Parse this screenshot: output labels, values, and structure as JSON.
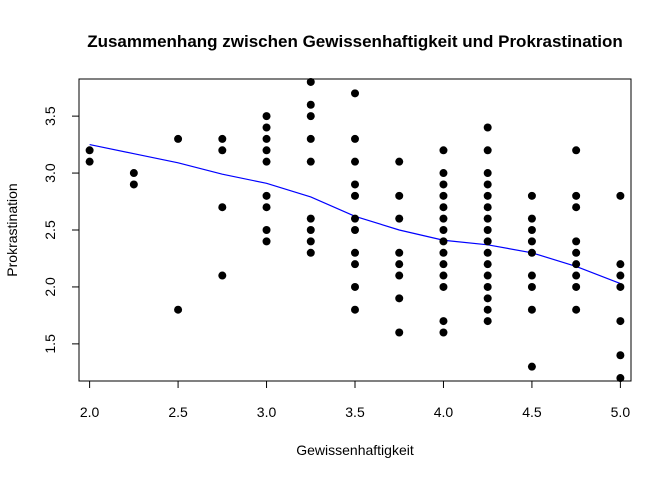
{
  "chart_data": {
    "type": "scatter",
    "title": "Zusammenhang zwischen Gewissenhaftigkeit und Prokrastination",
    "xlabel": "Gewissenhaftigkeit",
    "ylabel": "Prokrastination",
    "xlim": [
      1.94,
      5.06
    ],
    "ylim": [
      1.174,
      3.826
    ],
    "x_ticks": [
      2.0,
      2.5,
      3.0,
      3.5,
      4.0,
      4.5,
      5.0
    ],
    "x_tick_labels": [
      "2.0",
      "2.5",
      "3.0",
      "3.5",
      "4.0",
      "4.5",
      "5.0"
    ],
    "y_ticks": [
      1.5,
      2.0,
      2.5,
      3.0,
      3.5
    ],
    "y_tick_labels": [
      "1.5",
      "2.0",
      "2.5",
      "3.0",
      "3.5"
    ],
    "grid": false,
    "legend": "none",
    "point_color": "#000000",
    "smooth_color": "#0000ff",
    "points": [
      [
        2.0,
        3.2
      ],
      [
        2.0,
        3.1
      ],
      [
        2.25,
        3.0
      ],
      [
        2.25,
        2.9
      ],
      [
        2.5,
        3.3
      ],
      [
        2.5,
        1.8
      ],
      [
        2.75,
        3.3
      ],
      [
        2.75,
        3.2
      ],
      [
        2.75,
        2.7
      ],
      [
        2.75,
        2.1
      ],
      [
        3.0,
        3.5
      ],
      [
        3.0,
        3.4
      ],
      [
        3.0,
        3.3
      ],
      [
        3.0,
        3.2
      ],
      [
        3.0,
        3.1
      ],
      [
        3.0,
        2.8
      ],
      [
        3.0,
        2.7
      ],
      [
        3.0,
        2.5
      ],
      [
        3.0,
        2.4
      ],
      [
        3.25,
        3.8
      ],
      [
        3.25,
        3.6
      ],
      [
        3.25,
        3.5
      ],
      [
        3.25,
        3.3
      ],
      [
        3.25,
        3.1
      ],
      [
        3.25,
        2.6
      ],
      [
        3.25,
        2.5
      ],
      [
        3.25,
        2.4
      ],
      [
        3.25,
        2.3
      ],
      [
        3.5,
        3.7
      ],
      [
        3.5,
        3.3
      ],
      [
        3.5,
        3.1
      ],
      [
        3.5,
        2.9
      ],
      [
        3.5,
        2.8
      ],
      [
        3.5,
        2.6
      ],
      [
        3.5,
        2.5
      ],
      [
        3.5,
        2.3
      ],
      [
        3.5,
        2.2
      ],
      [
        3.5,
        2.0
      ],
      [
        3.5,
        1.8
      ],
      [
        3.75,
        3.1
      ],
      [
        3.75,
        2.8
      ],
      [
        3.75,
        2.6
      ],
      [
        3.75,
        2.3
      ],
      [
        3.75,
        2.2
      ],
      [
        3.75,
        2.1
      ],
      [
        3.75,
        1.9
      ],
      [
        3.75,
        1.6
      ],
      [
        4.0,
        3.2
      ],
      [
        4.0,
        3.0
      ],
      [
        4.0,
        2.9
      ],
      [
        4.0,
        2.8
      ],
      [
        4.0,
        2.7
      ],
      [
        4.0,
        2.6
      ],
      [
        4.0,
        2.5
      ],
      [
        4.0,
        2.4
      ],
      [
        4.0,
        2.3
      ],
      [
        4.0,
        2.2
      ],
      [
        4.0,
        2.1
      ],
      [
        4.0,
        2.0
      ],
      [
        4.0,
        1.7
      ],
      [
        4.0,
        1.6
      ],
      [
        4.25,
        3.4
      ],
      [
        4.25,
        3.2
      ],
      [
        4.25,
        3.0
      ],
      [
        4.25,
        2.9
      ],
      [
        4.25,
        2.8
      ],
      [
        4.25,
        2.7
      ],
      [
        4.25,
        2.6
      ],
      [
        4.25,
        2.5
      ],
      [
        4.25,
        2.4
      ],
      [
        4.25,
        2.3
      ],
      [
        4.25,
        2.2
      ],
      [
        4.25,
        2.1
      ],
      [
        4.25,
        2.0
      ],
      [
        4.25,
        1.9
      ],
      [
        4.25,
        1.8
      ],
      [
        4.25,
        1.7
      ],
      [
        4.5,
        2.8
      ],
      [
        4.5,
        2.6
      ],
      [
        4.5,
        2.5
      ],
      [
        4.5,
        2.4
      ],
      [
        4.5,
        2.3
      ],
      [
        4.5,
        2.1
      ],
      [
        4.5,
        2.0
      ],
      [
        4.5,
        1.8
      ],
      [
        4.5,
        1.3
      ],
      [
        4.75,
        3.2
      ],
      [
        4.75,
        2.8
      ],
      [
        4.75,
        2.7
      ],
      [
        4.75,
        2.4
      ],
      [
        4.75,
        2.3
      ],
      [
        4.75,
        2.2
      ],
      [
        4.75,
        2.1
      ],
      [
        4.75,
        2.0
      ],
      [
        4.75,
        1.8
      ],
      [
        5.0,
        2.8
      ],
      [
        5.0,
        2.2
      ],
      [
        5.0,
        2.1
      ],
      [
        5.0,
        2.0
      ],
      [
        5.0,
        1.7
      ],
      [
        5.0,
        1.4
      ],
      [
        5.0,
        1.2
      ]
    ],
    "smooth_line": [
      [
        2.0,
        3.25
      ],
      [
        2.25,
        3.17
      ],
      [
        2.5,
        3.09
      ],
      [
        2.75,
        2.99
      ],
      [
        3.0,
        2.91
      ],
      [
        3.25,
        2.79
      ],
      [
        3.5,
        2.62
      ],
      [
        3.75,
        2.5
      ],
      [
        4.0,
        2.41
      ],
      [
        4.25,
        2.37
      ],
      [
        4.5,
        2.3
      ],
      [
        4.75,
        2.18
      ],
      [
        5.0,
        2.03
      ]
    ]
  }
}
